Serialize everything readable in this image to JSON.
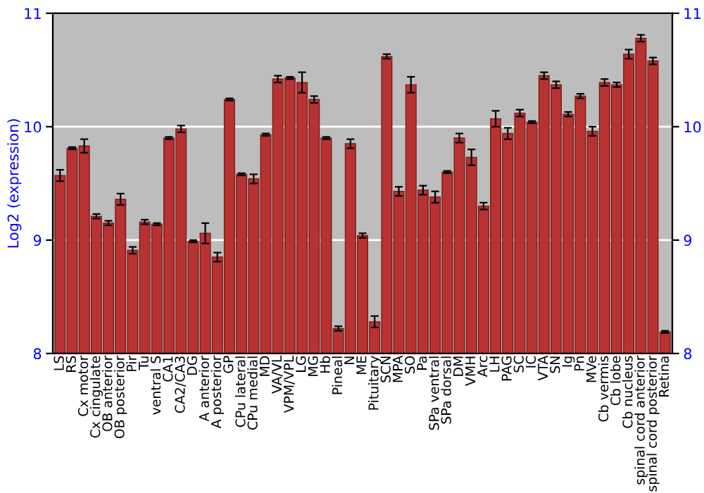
{
  "chart_data": {
    "type": "bar",
    "ylabel": "Log2 (expression)",
    "categories": [
      "LS",
      "RS",
      "Cx motor",
      "Cx cingulate",
      "OB anterior",
      "OB posterior",
      "Pir",
      "Tu",
      "ventral S",
      "CA1",
      "CA2/CA3",
      "DG",
      "A anterior",
      "A posterior",
      "GP",
      "CPu lateral",
      "CPu medial",
      "MD",
      "VA/VL",
      "VPM/VPL",
      "LG",
      "MG",
      "Hb",
      "Pineal",
      "N",
      "ME",
      "Pituitary",
      "SCN",
      "MPA",
      "SO",
      "Pa",
      "SPa ventral",
      "SPa dorsal",
      "DM",
      "VMH",
      "Arc",
      "LH",
      "PAG",
      "SC",
      "IC",
      "VTA",
      "SN",
      "Ig",
      "Pn",
      "MVe",
      "Cb vermis",
      "Cb lobe",
      "Cb nucleus",
      "spinal cord anterior",
      "spinal cord posterior",
      "Retina"
    ],
    "values": [
      9.57,
      9.81,
      9.83,
      9.21,
      9.15,
      9.36,
      8.91,
      9.16,
      9.14,
      9.9,
      9.98,
      8.99,
      9.06,
      8.85,
      10.24,
      9.58,
      9.54,
      9.93,
      10.42,
      10.43,
      10.39,
      10.24,
      9.9,
      8.22,
      9.85,
      9.04,
      8.28,
      10.62,
      9.43,
      10.37,
      9.44,
      9.38,
      9.6,
      9.9,
      9.73,
      9.3,
      10.07,
      9.94,
      10.12,
      10.04,
      10.45,
      10.37,
      10.11,
      10.27,
      9.96,
      10.39,
      10.37,
      10.64,
      10.78,
      10.58,
      8.19
    ],
    "errors": [
      0.05,
      0.01,
      0.06,
      0.02,
      0.02,
      0.05,
      0.03,
      0.02,
      0.01,
      0.01,
      0.03,
      0.01,
      0.09,
      0.04,
      0.01,
      0.01,
      0.04,
      0.01,
      0.03,
      0.01,
      0.09,
      0.03,
      0.01,
      0.02,
      0.04,
      0.02,
      0.05,
      0.02,
      0.04,
      0.07,
      0.04,
      0.05,
      0.01,
      0.04,
      0.07,
      0.03,
      0.07,
      0.05,
      0.03,
      0.01,
      0.03,
      0.03,
      0.02,
      0.02,
      0.04,
      0.03,
      0.02,
      0.04,
      0.03,
      0.03,
      0.01
    ],
    "color": "#b83232",
    "ylim": [
      8,
      11
    ],
    "yticks": [
      8,
      9,
      10,
      11
    ],
    "y2lim": [
      8,
      11
    ],
    "y2ticks": [
      8,
      9,
      10,
      11
    ],
    "grid": "y"
  }
}
